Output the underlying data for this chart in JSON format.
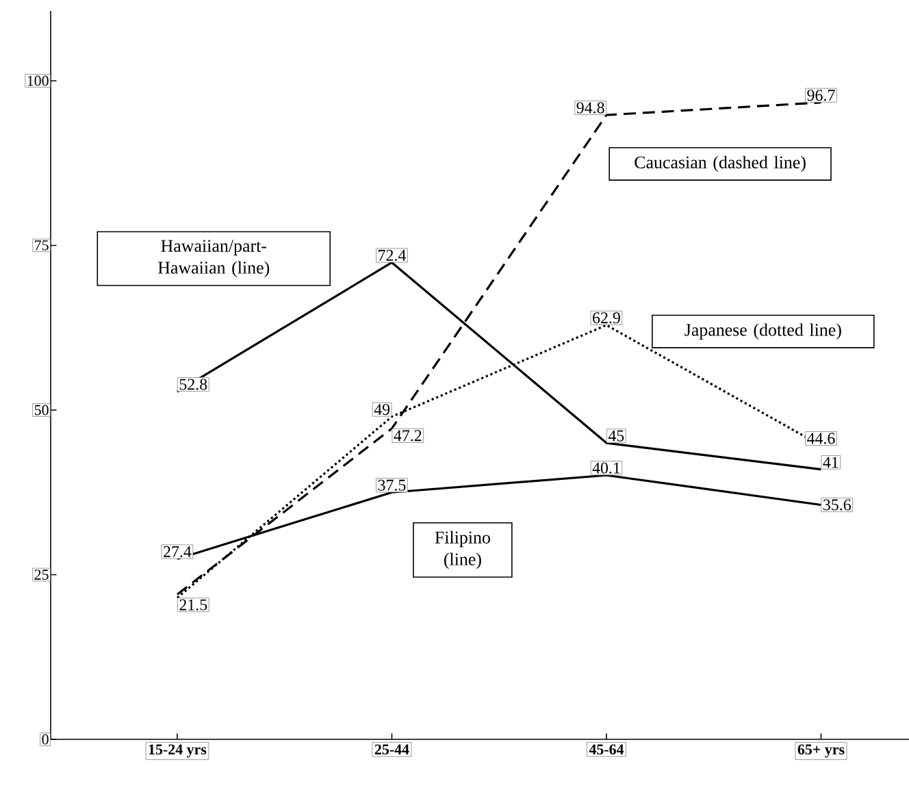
{
  "chart_data": {
    "type": "line",
    "categories": [
      "15-24 yrs",
      "25-44",
      "45-64",
      "65+ yrs"
    ],
    "ylim": [
      0,
      110.6
    ],
    "yticks": [
      0,
      25,
      50,
      75,
      100
    ],
    "legend": false,
    "grid": false,
    "marker": "none",
    "series": [
      {
        "name": "Hawaiian/part-Hawaiian (line)",
        "color": "#000000",
        "line_style": "solid",
        "values": [
          52.8,
          72.4,
          45,
          41
        ],
        "value_labels": [
          "52.8",
          "72.4",
          "45",
          "41"
        ]
      },
      {
        "name": "Caucasian (dashed line)",
        "color": "#000000",
        "line_style": "dashed",
        "values": [
          22,
          47.2,
          94.8,
          96.7
        ],
        "value_labels": [
          null,
          "47.2",
          "94.8",
          "96.7"
        ]
      },
      {
        "name": "Japanese (dotted line)",
        "color": "#000000",
        "line_style": "dotted",
        "values": [
          21.5,
          49,
          62.9,
          44.6
        ],
        "value_labels": [
          "21.5",
          "49",
          "62.9",
          "44.6"
        ]
      },
      {
        "name": "Filipino (line)",
        "color": "#000000",
        "line_style": "solid",
        "values": [
          27.4,
          37.5,
          40.1,
          35.6
        ],
        "value_labels": [
          "27.4",
          "37.5",
          "40.1",
          "35.6"
        ]
      }
    ]
  }
}
